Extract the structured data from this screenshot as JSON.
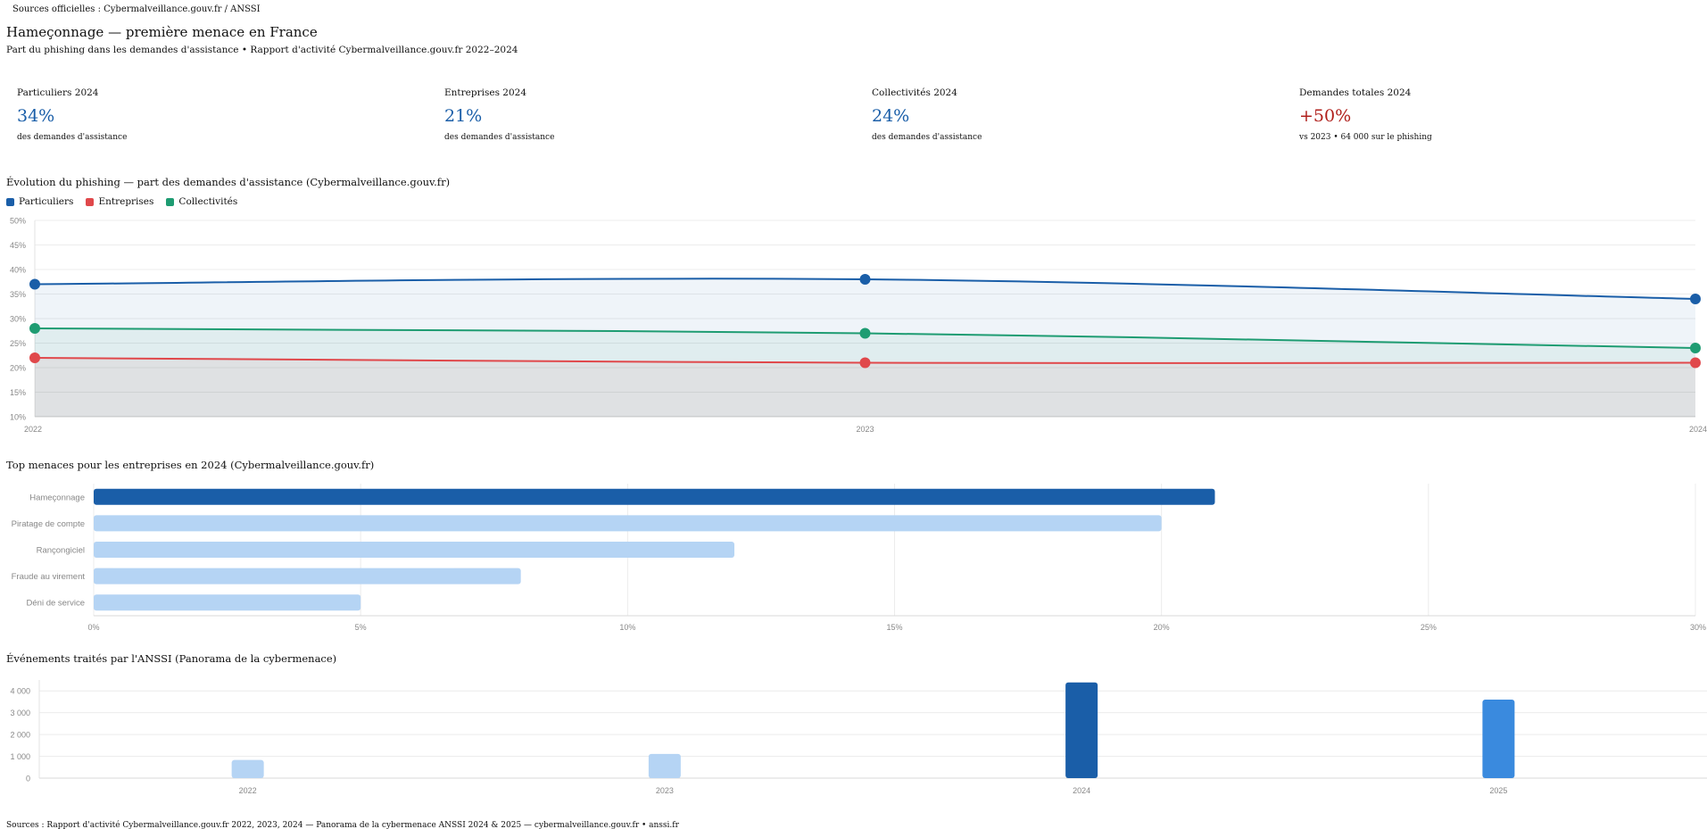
{
  "top_bar": {
    "text": "Sources officielles : Cybermalveillance.gouv.fr / ANSSI"
  },
  "header": {
    "title": "Hameçonnage — première menace en France",
    "subtitle": "Part du phishing dans les demandes d'assistance • Rapport d'activité Cybermalveillance.gouv.fr 2022–2024"
  },
  "kpis": [
    {
      "label": "Particuliers 2024",
      "value": "34%",
      "note": "des demandes d'assistance",
      "color": "#1a5ea8"
    },
    {
      "label": "Entreprises 2024",
      "value": "21%",
      "note": "des demandes d'assistance",
      "color": "#1a5ea8"
    },
    {
      "label": "Collectivités 2024",
      "value": "24%",
      "note": "des demandes d'assistance",
      "color": "#1a5ea8"
    },
    {
      "label": "Demandes totales 2024",
      "value": "+50%",
      "note": "vs 2023 • 64 000 sur le phishing",
      "color": "#b0201c"
    }
  ],
  "chart_data": [
    {
      "type": "line",
      "title": "Évolution du phishing — part des demandes d'assistance (Cybermalveillance.gouv.fr)",
      "x": [
        "2022",
        "2023",
        "2024"
      ],
      "series": [
        {
          "name": "Particuliers",
          "values": [
            37,
            38,
            34
          ],
          "color": "#1a5ea8"
        },
        {
          "name": "Entreprises",
          "values": [
            22,
            21,
            21
          ],
          "color": "#e0484b"
        },
        {
          "name": "Collectivités",
          "values": [
            28,
            27,
            24
          ],
          "color": "#1e9c72"
        }
      ],
      "ylim": [
        10,
        50
      ],
      "y_ticks": [
        "10%",
        "15%",
        "20%",
        "25%",
        "30%",
        "35%",
        "40%",
        "45%",
        "50%"
      ],
      "legend": "top-left",
      "grid": true
    },
    {
      "type": "bar",
      "orientation": "horizontal",
      "title": "Top menaces pour les entreprises en 2024 (Cybermalveillance.gouv.fr)",
      "categories": [
        "Hameçonnage",
        "Piratage de compte",
        "Rançongiciel",
        "Fraude au virement",
        "Déni de service"
      ],
      "values": [
        21,
        20,
        12,
        8,
        5
      ],
      "highlight_color": "#1a5ea8",
      "base_color": "#b5d4f4",
      "xlim": [
        0,
        30
      ],
      "x_ticks": [
        "0%",
        "5%",
        "10%",
        "15%",
        "20%",
        "25%",
        "30%"
      ],
      "grid": true
    },
    {
      "type": "bar",
      "title": "Événements traités par l'ANSSI (Panorama de la cybermenace)",
      "categories": [
        "2022",
        "2023",
        "2024",
        "2025"
      ],
      "values": [
        831,
        1112,
        4386,
        3600
      ],
      "colors": [
        "#b5d4f4",
        "#b5d4f4",
        "#1a5ea8",
        "#3a8ade"
      ],
      "ylim": [
        0,
        4500
      ],
      "y_ticks": [
        "0",
        "1 000",
        "2 000",
        "3 000",
        "4 000"
      ],
      "grid": true
    }
  ],
  "footer": {
    "text": "Sources : Rapport d'activité Cybermalveillance.gouv.fr 2022, 2023, 2024 — Panorama de la cybermenace ANSSI 2024 & 2025 — cybermalveillance.gouv.fr • anssi.fr"
  }
}
